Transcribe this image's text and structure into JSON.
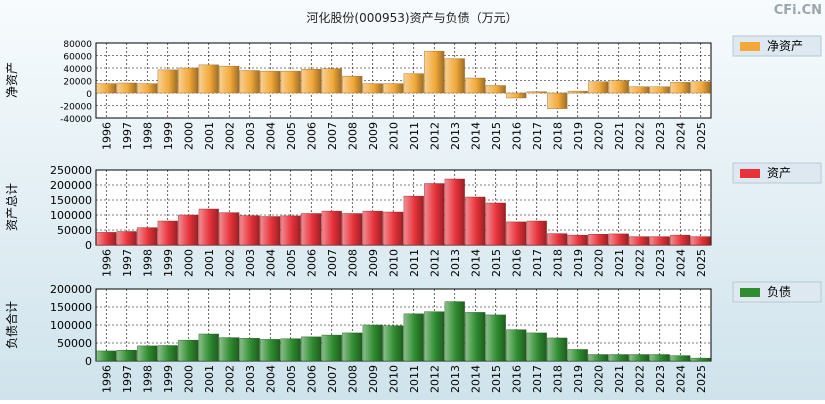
{
  "page": {
    "title": "河化股份(000953)资产与负债（万元）",
    "watermark": "CFi.CN"
  },
  "colors": {
    "orange": "#f2a93a",
    "red": "#e8323a",
    "green": "#2f8c2f",
    "plot_bg": "#ffffff",
    "grid": "#000000",
    "legend_bg": "#dde8f0"
  },
  "chart_data": [
    {
      "id": "net-assets",
      "type": "bar",
      "ylabel": "净资产",
      "legend": "净资产",
      "color_key": "orange",
      "ylim": [
        -40000,
        80000
      ],
      "yticks": [
        -40000,
        -20000,
        0,
        20000,
        40000,
        60000,
        80000
      ],
      "ytick_labels": [
        "-40000",
        "-20000",
        "0",
        "20000",
        "40000",
        "60000",
        "80000"
      ],
      "categories": [
        "1996",
        "1997",
        "1998",
        "1999",
        "2000",
        "2001",
        "2002",
        "2003",
        "2004",
        "2005",
        "2006",
        "2007",
        "2008",
        "2009",
        "2010",
        "2011",
        "2012",
        "2013",
        "2014",
        "2015",
        "2016",
        "2017",
        "2018",
        "2019",
        "2020",
        "2021",
        "2022",
        "2023",
        "2024",
        "2025"
      ],
      "values": [
        15000,
        16000,
        15000,
        37000,
        40000,
        45000,
        43000,
        36000,
        35000,
        35000,
        38000,
        39000,
        27000,
        15000,
        15000,
        31000,
        67000,
        55000,
        24000,
        12000,
        -8000,
        2000,
        -25000,
        3000,
        18000,
        20000,
        10000,
        10000,
        17000,
        18000
      ]
    },
    {
      "id": "total-assets",
      "type": "bar",
      "ylabel": "资产总计",
      "legend": "资产",
      "color_key": "red",
      "ylim": [
        0,
        250000
      ],
      "yticks": [
        0,
        50000,
        100000,
        150000,
        200000,
        250000
      ],
      "ytick_labels": [
        "0",
        "50000",
        "100000",
        "150000",
        "200000",
        "250000"
      ],
      "categories": [
        "1996",
        "1997",
        "1998",
        "1999",
        "2000",
        "2001",
        "2002",
        "2003",
        "2004",
        "2005",
        "2006",
        "2007",
        "2008",
        "2009",
        "2010",
        "2011",
        "2012",
        "2013",
        "2014",
        "2015",
        "2016",
        "2017",
        "2018",
        "2019",
        "2020",
        "2021",
        "2022",
        "2023",
        "2024",
        "2025"
      ],
      "values": [
        42000,
        45000,
        58000,
        80000,
        100000,
        120000,
        108000,
        98000,
        95000,
        97000,
        105000,
        113000,
        105000,
        113000,
        110000,
        163000,
        205000,
        220000,
        160000,
        140000,
        77000,
        80000,
        38000,
        33000,
        36000,
        37000,
        28000,
        28000,
        33000,
        28000
      ]
    },
    {
      "id": "total-liabilities",
      "type": "bar",
      "ylabel": "负债合计",
      "legend": "负债",
      "color_key": "green",
      "ylim": [
        0,
        200000
      ],
      "yticks": [
        0,
        50000,
        100000,
        150000,
        200000
      ],
      "ytick_labels": [
        "0",
        "50000",
        "100000",
        "150000",
        "200000"
      ],
      "categories": [
        "1996",
        "1997",
        "1998",
        "1999",
        "2000",
        "2001",
        "2002",
        "2003",
        "2004",
        "2005",
        "2006",
        "2007",
        "2008",
        "2009",
        "2010",
        "2011",
        "2012",
        "2013",
        "2014",
        "2015",
        "2016",
        "2017",
        "2018",
        "2019",
        "2020",
        "2021",
        "2022",
        "2023",
        "2024",
        "2025"
      ],
      "values": [
        28000,
        30000,
        42000,
        43000,
        58000,
        75000,
        65000,
        63000,
        60000,
        62000,
        67000,
        72000,
        78000,
        100000,
        98000,
        131000,
        137000,
        165000,
        135000,
        128000,
        87000,
        78000,
        64000,
        32000,
        18000,
        18000,
        18000,
        18000,
        15000,
        8000
      ]
    }
  ]
}
